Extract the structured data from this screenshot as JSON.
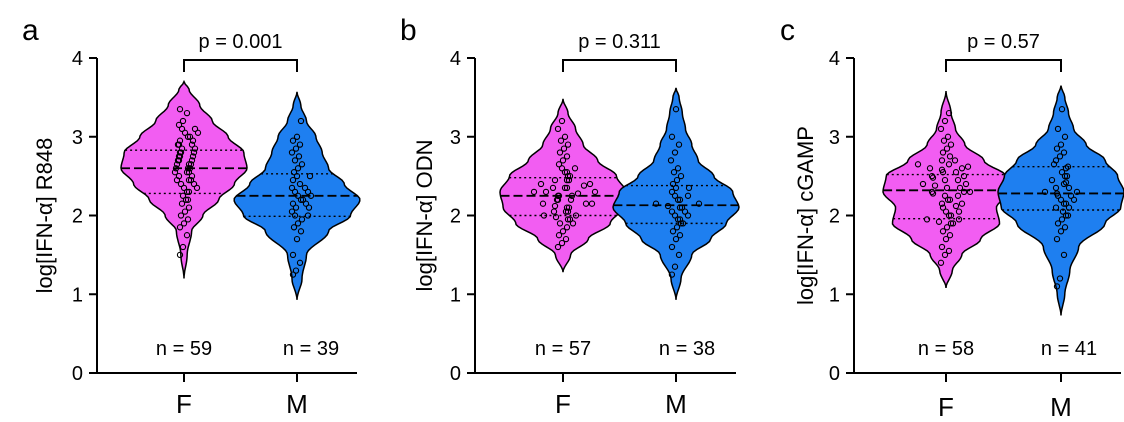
{
  "colors": {
    "female": "#f25df2",
    "male": "#1e7ff0",
    "outline": "#000000"
  },
  "chart_data": [
    {
      "type": "violin",
      "panel_label": "a",
      "ylabel": "log[IFN-α] R848",
      "ylim": [
        0,
        4
      ],
      "yticks": [
        0,
        1,
        2,
        3,
        4
      ],
      "categories": [
        "F",
        "M"
      ],
      "p_value": "p = 0.001",
      "groups": [
        {
          "category": "F",
          "n_label": "n = 59",
          "color": "#f25df2",
          "min": 1.2,
          "max": 3.7,
          "median": 2.6,
          "q1": 2.28,
          "q3": 2.83,
          "profile": [
            [
              1.2,
              0.0
            ],
            [
              1.5,
              0.05
            ],
            [
              1.8,
              0.12
            ],
            [
              2.0,
              0.3
            ],
            [
              2.2,
              0.55
            ],
            [
              2.4,
              0.8
            ],
            [
              2.6,
              1.0
            ],
            [
              2.8,
              0.95
            ],
            [
              3.0,
              0.7
            ],
            [
              3.2,
              0.45
            ],
            [
              3.4,
              0.25
            ],
            [
              3.6,
              0.08
            ],
            [
              3.7,
              0.0
            ]
          ],
          "points": [
            1.5,
            1.6,
            1.75,
            1.85,
            1.9,
            1.95,
            2.0,
            2.05,
            2.1,
            2.15,
            2.2,
            2.2,
            2.25,
            2.3,
            2.3,
            2.35,
            2.4,
            2.4,
            2.45,
            2.45,
            2.5,
            2.5,
            2.55,
            2.55,
            2.6,
            2.6,
            2.6,
            2.65,
            2.65,
            2.7,
            2.7,
            2.7,
            2.75,
            2.75,
            2.8,
            2.8,
            2.8,
            2.85,
            2.85,
            2.9,
            2.9,
            2.9,
            2.95,
            2.95,
            3.0,
            3.0,
            3.05,
            3.05,
            3.1,
            3.1,
            3.15,
            3.2,
            3.3,
            3.35,
            2.55,
            2.65,
            2.35,
            2.75,
            2.45
          ]
        },
        {
          "category": "M",
          "n_label": "n = 39",
          "color": "#1e7ff0",
          "min": 0.93,
          "max": 3.57,
          "median": 2.25,
          "q1": 1.99,
          "q3": 2.53,
          "profile": [
            [
              0.93,
              0.0
            ],
            [
              1.2,
              0.08
            ],
            [
              1.5,
              0.15
            ],
            [
              1.8,
              0.5
            ],
            [
              2.0,
              0.85
            ],
            [
              2.2,
              1.0
            ],
            [
              2.4,
              0.75
            ],
            [
              2.6,
              0.5
            ],
            [
              2.8,
              0.4
            ],
            [
              3.0,
              0.3
            ],
            [
              3.2,
              0.15
            ],
            [
              3.4,
              0.06
            ],
            [
              3.57,
              0.0
            ]
          ],
          "points": [
            1.25,
            1.3,
            1.4,
            1.5,
            1.7,
            1.8,
            1.85,
            1.9,
            1.95,
            2.0,
            2.0,
            2.05,
            2.1,
            2.1,
            2.15,
            2.2,
            2.2,
            2.25,
            2.25,
            2.3,
            2.3,
            2.35,
            2.4,
            2.45,
            2.5,
            2.5,
            2.55,
            2.6,
            2.65,
            2.7,
            2.75,
            2.8,
            2.85,
            2.9,
            2.95,
            3.0,
            3.2,
            2.15,
            2.35
          ]
        }
      ]
    },
    {
      "type": "violin",
      "panel_label": "b",
      "ylabel": "log[IFN-α] ODN",
      "ylim": [
        0,
        4
      ],
      "yticks": [
        0,
        1,
        2,
        3,
        4
      ],
      "categories": [
        "F",
        "M"
      ],
      "p_value": "p = 0.311",
      "groups": [
        {
          "category": "F",
          "n_label": "n = 57",
          "color": "#f25df2",
          "min": 1.28,
          "max": 3.48,
          "median": 2.25,
          "q1": 2.0,
          "q3": 2.48,
          "profile": [
            [
              1.28,
              0.0
            ],
            [
              1.5,
              0.12
            ],
            [
              1.7,
              0.4
            ],
            [
              1.9,
              0.75
            ],
            [
              2.1,
              0.95
            ],
            [
              2.3,
              1.0
            ],
            [
              2.5,
              0.85
            ],
            [
              2.7,
              0.55
            ],
            [
              2.9,
              0.32
            ],
            [
              3.1,
              0.2
            ],
            [
              3.3,
              0.08
            ],
            [
              3.48,
              0.0
            ]
          ],
          "points": [
            1.6,
            1.65,
            1.7,
            1.75,
            1.8,
            1.85,
            1.9,
            1.9,
            1.95,
            1.95,
            2.0,
            2.0,
            2.05,
            2.05,
            2.1,
            2.1,
            2.15,
            2.15,
            2.2,
            2.2,
            2.2,
            2.25,
            2.25,
            2.3,
            2.3,
            2.3,
            2.35,
            2.35,
            2.4,
            2.4,
            2.45,
            2.45,
            2.5,
            2.5,
            2.55,
            2.55,
            2.6,
            2.6,
            2.65,
            2.7,
            2.75,
            2.8,
            2.85,
            2.9,
            2.95,
            3.0,
            3.1,
            3.2,
            2.15,
            2.25,
            2.35,
            2.05,
            2.45,
            1.98,
            2.28,
            2.38,
            2.12
          ]
        },
        {
          "category": "M",
          "n_label": "n = 38",
          "color": "#1e7ff0",
          "min": 0.93,
          "max": 3.62,
          "median": 2.13,
          "q1": 1.9,
          "q3": 2.38,
          "profile": [
            [
              0.93,
              0.0
            ],
            [
              1.2,
              0.08
            ],
            [
              1.5,
              0.25
            ],
            [
              1.7,
              0.55
            ],
            [
              1.9,
              0.8
            ],
            [
              2.1,
              1.0
            ],
            [
              2.3,
              0.9
            ],
            [
              2.5,
              0.6
            ],
            [
              2.7,
              0.35
            ],
            [
              2.9,
              0.25
            ],
            [
              3.1,
              0.15
            ],
            [
              3.3,
              0.1
            ],
            [
              3.5,
              0.05
            ],
            [
              3.62,
              0.0
            ]
          ],
          "points": [
            1.25,
            1.35,
            1.5,
            1.6,
            1.7,
            1.75,
            1.8,
            1.85,
            1.9,
            1.9,
            1.95,
            2.0,
            2.0,
            2.05,
            2.1,
            2.1,
            2.15,
            2.15,
            2.2,
            2.25,
            2.25,
            2.3,
            2.35,
            2.4,
            2.45,
            2.5,
            2.55,
            2.6,
            2.7,
            2.8,
            2.9,
            3.0,
            3.35,
            2.05,
            2.2,
            1.95,
            2.35,
            2.12
          ]
        }
      ]
    },
    {
      "type": "violin",
      "panel_label": "c",
      "ylabel": "log[IFN-α] cGAMP",
      "ylim": [
        0,
        4
      ],
      "yticks": [
        0,
        1,
        2,
        3,
        4
      ],
      "categories": [
        "F",
        "M"
      ],
      "p_value": "p = 0.57",
      "groups": [
        {
          "category": "F",
          "n_label": "n = 58",
          "color": "#f25df2",
          "min": 1.08,
          "max": 3.58,
          "median": 2.32,
          "q1": 1.96,
          "q3": 2.52,
          "profile": [
            [
              1.08,
              0.0
            ],
            [
              1.3,
              0.1
            ],
            [
              1.5,
              0.25
            ],
            [
              1.7,
              0.55
            ],
            [
              1.9,
              0.85
            ],
            [
              2.1,
              0.8
            ],
            [
              2.3,
              1.0
            ],
            [
              2.5,
              0.95
            ],
            [
              2.7,
              0.6
            ],
            [
              2.9,
              0.3
            ],
            [
              3.1,
              0.15
            ],
            [
              3.3,
              0.08
            ],
            [
              3.58,
              0.0
            ]
          ],
          "points": [
            1.4,
            1.5,
            1.55,
            1.6,
            1.7,
            1.75,
            1.8,
            1.85,
            1.9,
            1.9,
            1.95,
            1.95,
            2.0,
            2.0,
            2.05,
            2.1,
            2.15,
            2.2,
            2.2,
            2.25,
            2.25,
            2.3,
            2.3,
            2.3,
            2.35,
            2.35,
            2.4,
            2.4,
            2.45,
            2.45,
            2.5,
            2.5,
            2.55,
            2.55,
            2.6,
            2.6,
            2.65,
            2.65,
            2.7,
            2.7,
            2.75,
            2.8,
            2.85,
            2.9,
            2.95,
            3.0,
            3.1,
            3.2,
            3.3,
            2.05,
            2.15,
            2.38,
            2.48,
            1.92,
            2.28,
            2.58,
            2.62,
            2.12
          ]
        },
        {
          "category": "M",
          "n_label": "n = 41",
          "color": "#1e7ff0",
          "min": 0.73,
          "max": 3.65,
          "median": 2.28,
          "q1": 2.07,
          "q3": 2.62,
          "profile": [
            [
              0.73,
              0.0
            ],
            [
              1.0,
              0.06
            ],
            [
              1.3,
              0.14
            ],
            [
              1.6,
              0.28
            ],
            [
              1.9,
              0.7
            ],
            [
              2.1,
              0.95
            ],
            [
              2.3,
              1.0
            ],
            [
              2.5,
              0.9
            ],
            [
              2.7,
              0.7
            ],
            [
              2.9,
              0.4
            ],
            [
              3.1,
              0.2
            ],
            [
              3.3,
              0.12
            ],
            [
              3.5,
              0.06
            ],
            [
              3.65,
              0.0
            ]
          ],
          "points": [
            1.1,
            1.2,
            1.5,
            1.7,
            1.8,
            1.85,
            1.9,
            1.95,
            2.0,
            2.0,
            2.05,
            2.1,
            2.1,
            2.15,
            2.2,
            2.2,
            2.25,
            2.25,
            2.3,
            2.3,
            2.35,
            2.35,
            2.4,
            2.45,
            2.5,
            2.5,
            2.55,
            2.6,
            2.65,
            2.7,
            2.75,
            2.8,
            2.85,
            2.9,
            3.0,
            3.1,
            3.35,
            2.15,
            2.28,
            2.42,
            2.62
          ]
        }
      ]
    }
  ]
}
